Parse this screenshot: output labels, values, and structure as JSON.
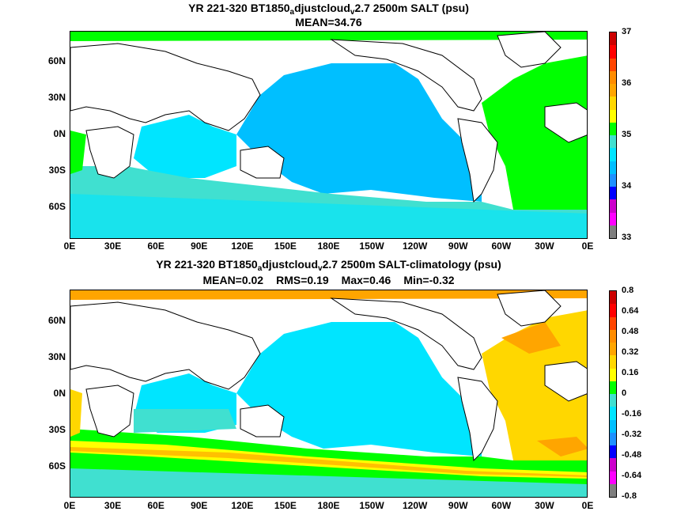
{
  "panels": [
    {
      "title_a": "YR 221-320 BT1850",
      "title_sub1": "a",
      "title_b": "djustcloud",
      "title_sub2": "v",
      "title_c": "2.7 2500m SALT (psu)",
      "stats": [
        "MEAN=34.76"
      ],
      "lat_labels": [
        "60N",
        "30N",
        "0N",
        "30S",
        "60S"
      ],
      "lon_labels": [
        "0E",
        "30E",
        "60E",
        "90E",
        "120E",
        "150E",
        "180E",
        "150W",
        "120W",
        "90W",
        "60W",
        "30W",
        "0E"
      ],
      "colorbar_labels": [
        "37",
        "36",
        "35",
        "34",
        "33"
      ],
      "colorbar_colors": [
        "#7f7f7f",
        "#ff00ff",
        "#cc00cc",
        "#0000ff",
        "#1e90ff",
        "#00bfff",
        "#00e5ff",
        "#40e0d0",
        "#00ff00",
        "#ffff00",
        "#ffd700",
        "#ffa500",
        "#ff8c00",
        "#ff4500",
        "#ff0000",
        "#cc0000"
      ]
    },
    {
      "title_a": "YR 221-320 BT1850",
      "title_sub1": "a",
      "title_b": "djustcloud",
      "title_sub2": "v",
      "title_c": "2.7 2500m SALT-climatology (psu)",
      "stats": [
        "MEAN=0.02",
        "RMS=0.19",
        "Max=0.46",
        "Min=-0.32"
      ],
      "lat_labels": [
        "60N",
        "30N",
        "0N",
        "30S",
        "60S"
      ],
      "lon_labels": [
        "0E",
        "30E",
        "60E",
        "90E",
        "120E",
        "150E",
        "180E",
        "150W",
        "120W",
        "90W",
        "60W",
        "30W",
        "0E"
      ],
      "colorbar_labels": [
        "0.8",
        "0.64",
        "0.48",
        "0.32",
        "0.16",
        "0",
        "-0.16",
        "-0.32",
        "-0.48",
        "-0.64",
        "-0.8"
      ],
      "colorbar_colors": [
        "#7f7f7f",
        "#ff00ff",
        "#cc00cc",
        "#0000ff",
        "#1e90ff",
        "#00bfff",
        "#00e5ff",
        "#40e0d0",
        "#00ff00",
        "#ffff00",
        "#ffd700",
        "#ffa500",
        "#ff8c00",
        "#ff4500",
        "#ff0000",
        "#cc0000"
      ]
    }
  ],
  "colors": {
    "land": "#ffffff",
    "coast": "#000000",
    "pacific_top": "#00bfff",
    "indian_top": "#00e5ff",
    "southern_top": "#40e0d0",
    "atlantic_top": "#00ff00",
    "pacific_bottom": "#00e5ff",
    "atlantic_bottom": "#ffd700",
    "southern_bottom": "#ffff00"
  }
}
